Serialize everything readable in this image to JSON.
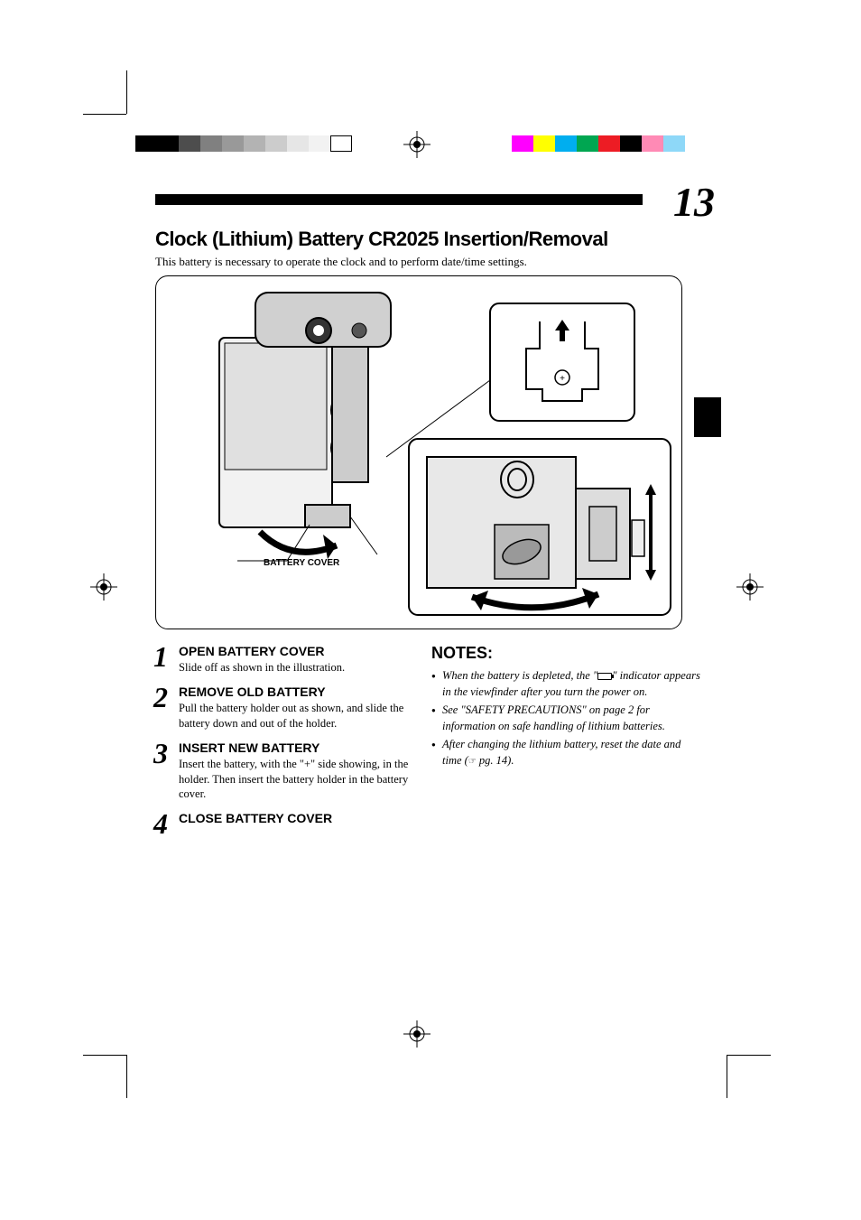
{
  "page_number": "13",
  "section_title": "Clock (Lithium) Battery CR2025 Insertion/Removal",
  "section_subtitle": "This battery is necessary to operate the clock and to perform date/time settings.",
  "illustration": {
    "label": "BATTERY COVER"
  },
  "steps": [
    {
      "num": "1",
      "title": "OPEN BATTERY COVER",
      "body": "Slide off as shown in the illustration."
    },
    {
      "num": "2",
      "title": "REMOVE OLD BATTERY",
      "body": "Pull the battery holder out as shown, and slide the battery down and out of the holder."
    },
    {
      "num": "3",
      "title": "INSERT NEW BATTERY",
      "body": "Insert the battery, with the \"+\" side showing, in the holder. Then insert the battery holder in the battery cover."
    },
    {
      "num": "4",
      "title": "CLOSE BATTERY COVER",
      "body": ""
    }
  ],
  "notes": {
    "title": "NOTES:",
    "items": [
      {
        "pre": "When the battery is depleted, the \"",
        "post": "\" indicator appears in the viewfinder after you turn the power on.",
        "has_icon": true
      },
      {
        "text": "See \"SAFETY PRECAUTIONS\" on page 2 for information on safe handling of lithium batteries."
      },
      {
        "pre": "After changing the lithium battery, reset the date and time (",
        "ref": "☞",
        "post": " pg. 14)."
      }
    ]
  },
  "grayscale": [
    "#000000",
    "#000000",
    "#4d4d4d",
    "#808080",
    "#999999",
    "#b3b3b3",
    "#cccccc",
    "#e6e6e6",
    "#f2f2f2",
    "#ffffff"
  ],
  "colors": [
    "#ff00ff",
    "#ffff00",
    "#00aeef",
    "#00a651",
    "#ed1c24",
    "#000000",
    "#ff8ab5",
    "#8ed8f8"
  ]
}
